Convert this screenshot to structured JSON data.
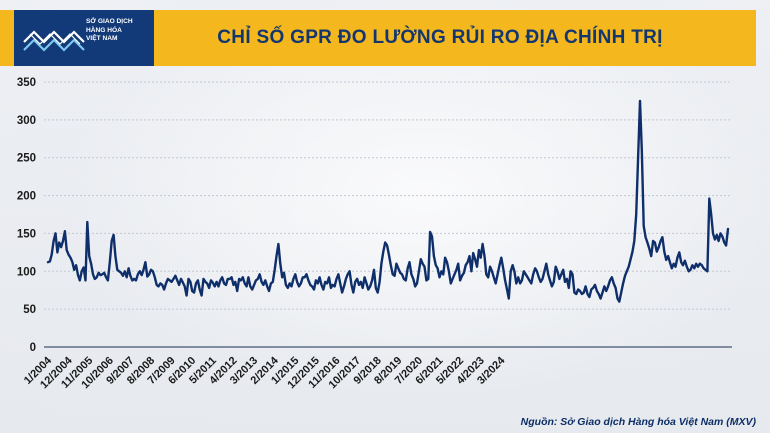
{
  "header": {
    "title": "CHỈ SỐ GPR ĐO LƯỜNG RỦI RO ĐỊA CHÍNH TRỊ",
    "logo_lines": [
      "SỞ GIAO DỊCH",
      "HÀNG HÓA",
      "VIỆT NAM"
    ]
  },
  "footer": {
    "source": "Nguồn: Sở Giao dịch Hàng hóa Việt Nam (MXV)"
  },
  "colors": {
    "accent": "#f4b81e",
    "brand": "#123a78",
    "line": "#0f2f6b"
  },
  "chart_data": {
    "type": "line",
    "title": "CHỈ SỐ GPR ĐO LƯỜNG RỦI RO ĐỊA CHÍNH TRỊ",
    "xlabel": "",
    "ylabel": "",
    "ylim": [
      0,
      350
    ],
    "yticks": [
      0,
      50,
      100,
      150,
      200,
      250,
      300,
      350
    ],
    "x_tick_labels": [
      "1/2004",
      "12/2004",
      "11/2005",
      "10/2006",
      "9/2007",
      "8/2008",
      "7/2009",
      "6/2010",
      "5/2011",
      "4/2012",
      "3/2013",
      "2/2014",
      "1/2015",
      "12/2015",
      "11/2016",
      "10/2017",
      "9/2018",
      "8/2019",
      "7/2020",
      "6/2021",
      "5/2022",
      "4/2023",
      "3/2024"
    ],
    "x_start": "1/2004",
    "x_end": "3/2024",
    "grid": "horizontal",
    "series": [
      {
        "values": [
          112,
          113,
          122,
          140,
          150,
          125,
          138,
          132,
          140,
          153,
          128,
          122,
          118,
          112,
          102,
          108,
          95,
          88,
          100,
          105,
          88,
          165,
          120,
          110,
          96,
          90,
          92,
          98,
          95,
          96,
          98,
          92,
          88,
          112,
          140,
          148,
          120,
          102,
          100,
          98,
          94,
          100,
          92,
          104,
          94,
          88,
          90,
          88,
          96,
          100,
          95,
          102,
          112,
          93,
          96,
          102,
          100,
          92,
          82,
          80,
          84,
          82,
          76,
          84,
          90,
          88,
          86,
          90,
          94,
          88,
          82,
          90,
          85,
          80,
          68,
          90,
          86,
          74,
          72,
          84,
          88,
          76,
          68,
          90,
          86,
          84,
          78,
          88,
          85,
          80,
          86,
          80,
          88,
          92,
          84,
          82,
          90,
          90,
          92,
          82,
          86,
          74,
          90,
          88,
          92,
          84,
          80,
          92,
          80,
          76,
          82,
          88,
          90,
          96,
          86,
          82,
          88,
          80,
          74,
          84,
          86,
          102,
          120,
          136,
          110,
          92,
          98,
          82,
          78,
          84,
          80,
          90,
          96,
          86,
          80,
          84,
          92,
          92,
          96,
          88,
          82,
          80,
          76,
          88,
          84,
          92,
          82,
          76,
          86,
          84,
          92,
          78,
          82,
          80,
          90,
          96,
          84,
          72,
          80,
          90,
          96,
          100,
          82,
          72,
          86,
          90,
          82,
          86,
          78,
          92,
          84,
          76,
          80,
          88,
          102,
          78,
          72,
          86,
          110,
          126,
          138,
          134,
          122,
          108,
          96,
          94,
          110,
          104,
          98,
          96,
          90,
          88,
          104,
          112,
          96,
          90,
          80,
          84,
          100,
          116,
          110,
          106,
          88,
          90,
          152,
          146,
          120,
          108,
          104,
          92,
          100,
          96,
          118,
          112,
          100,
          84,
          90,
          96,
          102,
          110,
          88,
          94,
          98,
          108,
          112,
          120,
          100,
          124,
          116,
          106,
          128,
          118,
          136,
          120,
          96,
          92,
          106,
          100,
          92,
          84,
          96,
          108,
          118,
          104,
          88,
          76,
          64,
          100,
          108,
          100,
          84,
          92,
          84,
          88,
          100,
          96,
          92,
          88,
          84,
          96,
          104,
          100,
          92,
          86,
          90,
          100,
          110,
          96,
          88,
          80,
          86,
          106,
          100,
          90,
          96,
          102,
          86,
          90,
          78,
          100,
          96,
          72,
          70,
          76,
          74,
          70,
          72,
          80,
          70,
          66,
          76,
          78,
          82,
          74,
          70,
          64,
          72,
          80,
          74,
          80,
          88,
          92,
          84,
          78,
          64,
          60,
          72,
          84,
          94,
          100,
          106,
          116,
          126,
          140,
          175,
          250,
          325,
          260,
          160,
          145,
          138,
          130,
          120,
          140,
          138,
          126,
          132,
          140,
          145,
          126,
          115,
          120,
          112,
          104,
          110,
          106,
          118,
          125,
          112,
          108,
          114,
          106,
          100,
          102,
          108,
          104,
          110,
          106,
          110,
          108,
          104,
          102,
          100,
          196,
          176,
          150,
          142,
          148,
          140,
          150,
          146,
          138,
          134,
          156
        ]
      }
    ]
  }
}
